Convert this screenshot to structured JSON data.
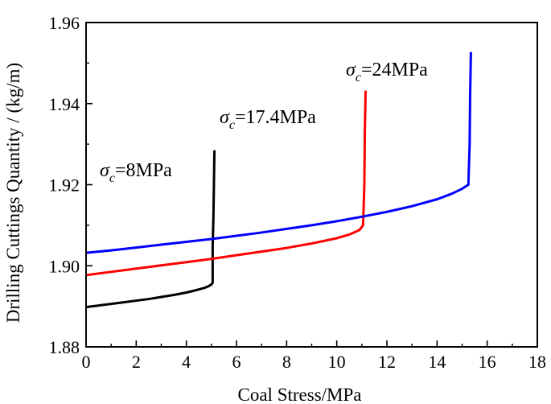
{
  "chart_data": {
    "type": "line",
    "title": "",
    "xlabel": "Coal Stress/MPa",
    "ylabel": "Drilling Cuttings Quantity / (kg/m)",
    "xlim": [
      0,
      18
    ],
    "ylim": [
      1.88,
      1.96
    ],
    "xticks": [
      0,
      2,
      4,
      6,
      8,
      10,
      12,
      14,
      16,
      18
    ],
    "xtick_labels": [
      "0",
      "2",
      "4",
      "6",
      "8",
      "10",
      "12",
      "14",
      "16",
      "18"
    ],
    "yticks": [
      1.88,
      1.9,
      1.92,
      1.94,
      1.96
    ],
    "ytick_labels": [
      "1.88",
      "1.90",
      "1.92",
      "1.94",
      "1.96"
    ],
    "grid": false,
    "series": [
      {
        "name": "σc=8MPa",
        "color": "#000000",
        "label_symbol": "σ",
        "label_sub": "c",
        "label_rest": "=8MPa",
        "x": [
          0,
          0.5,
          1,
          1.5,
          2,
          2.5,
          3,
          3.5,
          4,
          4.4,
          4.7,
          4.9,
          5.0,
          5.05,
          5.05,
          5.08,
          5.1,
          5.12
        ],
        "y": [
          1.8898,
          1.8902,
          1.8906,
          1.891,
          1.8914,
          1.8918,
          1.8923,
          1.8928,
          1.8934,
          1.894,
          1.8945,
          1.895,
          1.8954,
          1.8958,
          1.905,
          1.912,
          1.92,
          1.9285
        ]
      },
      {
        "name": "σc=17.4MPa",
        "color": "#ff0000",
        "label_symbol": "σ",
        "label_sub": "c",
        "label_rest": "=17.4MPa",
        "x": [
          0,
          1,
          2,
          3,
          4,
          5,
          6,
          7,
          8,
          9,
          10,
          10.5,
          10.9,
          11.05,
          11.1,
          11.12,
          11.15
        ],
        "y": [
          1.8977,
          1.8985,
          1.8993,
          1.9001,
          1.9009,
          1.9017,
          1.9026,
          1.9035,
          1.9044,
          1.9055,
          1.9068,
          1.9077,
          1.9088,
          1.91,
          1.92,
          1.933,
          1.9432
        ]
      },
      {
        "name": "σc=24MPa",
        "color": "#0000ff",
        "label_symbol": "σ",
        "label_sub": "c",
        "label_rest": "=24MPa",
        "x": [
          0,
          1,
          2,
          3,
          4,
          5,
          6,
          7,
          8,
          9,
          10,
          11,
          12,
          13,
          14,
          14.6,
          15.0,
          15.25,
          15.3,
          15.32,
          15.35
        ],
        "y": [
          1.9032,
          1.9038,
          1.9045,
          1.9052,
          1.9059,
          1.9066,
          1.9074,
          1.9082,
          1.9091,
          1.91,
          1.911,
          1.9121,
          1.9133,
          1.9147,
          1.9164,
          1.9178,
          1.919,
          1.92,
          1.93,
          1.942,
          1.9527
        ]
      }
    ]
  }
}
